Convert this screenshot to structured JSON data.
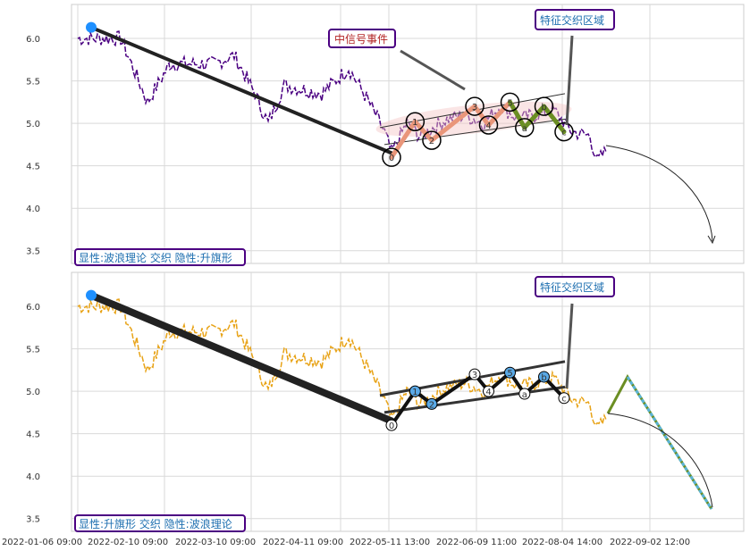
{
  "chart_data": [
    {
      "type": "line",
      "panel": "top",
      "series_color": "#4b0082",
      "ylim": [
        3.35,
        6.4
      ],
      "yticks": [
        3.5,
        4.0,
        4.5,
        5.0,
        5.5,
        6.0
      ],
      "grid": true,
      "annotations": {
        "label_box": "显性:波浪理论 交织 隐性:升旗形",
        "event_box": "中信号事件",
        "region_box": "特征交织区域"
      },
      "wave_labels": [
        "0",
        "1",
        "2",
        "3",
        "4",
        "5",
        "a",
        "b",
        "c"
      ],
      "wave_points_x": [
        0.0,
        0.17,
        0.29,
        0.6,
        0.7,
        0.855,
        0.96,
        1.1,
        1.245
      ],
      "wave_points_y": [
        4.6,
        5.02,
        4.8,
        5.2,
        4.98,
        5.25,
        4.95,
        5.2,
        4.9
      ],
      "trend_start": {
        "x": -4.22,
        "y": 6.13
      },
      "trend_end": {
        "x": 0.0,
        "y": 4.65
      }
    },
    {
      "type": "line",
      "panel": "bottom",
      "series_color": "#e8a317",
      "ylim": [
        3.35,
        6.4
      ],
      "yticks": [
        3.5,
        4.0,
        4.5,
        5.0,
        5.5,
        6.0
      ],
      "grid": true,
      "annotations": {
        "label_box": "显性:升旗形 交织 隐性:波浪理论",
        "region_box": "特征交织区域"
      },
      "wave_labels": [
        "0",
        "1",
        "2",
        "3",
        "4",
        "5",
        "a",
        "b",
        "c"
      ],
      "wave_points_x": [
        0.0,
        0.17,
        0.29,
        0.6,
        0.7,
        0.855,
        0.96,
        1.1,
        1.245
      ],
      "wave_points_y": [
        4.6,
        5.0,
        4.85,
        5.2,
        5.0,
        5.22,
        4.97,
        5.17,
        4.92
      ],
      "trend_start": {
        "x": -4.22,
        "y": 6.13
      },
      "trend_end": {
        "x": 0.0,
        "y": 4.65
      }
    }
  ],
  "x_tick_labels": [
    "2022-01-06 09:00",
    "2022-02-10 09:00",
    "2022-03-10 09:00",
    "2022-04-11 09:00",
    "2022-05-11 13:00",
    "2022-06-09 11:00",
    "2022-08-04 14:00",
    "2022-09-02 12:00"
  ],
  "colors": {
    "wave_up": "#e9967a",
    "wave_corrective": "#6b8e23",
    "trend": "#222222",
    "blue_marker": "#1e90ff",
    "box_border": "#4b0082",
    "box_text_blue": "#1e6fb0",
    "event_text": "#b22222",
    "flag_fill": "#5ab4d6"
  }
}
